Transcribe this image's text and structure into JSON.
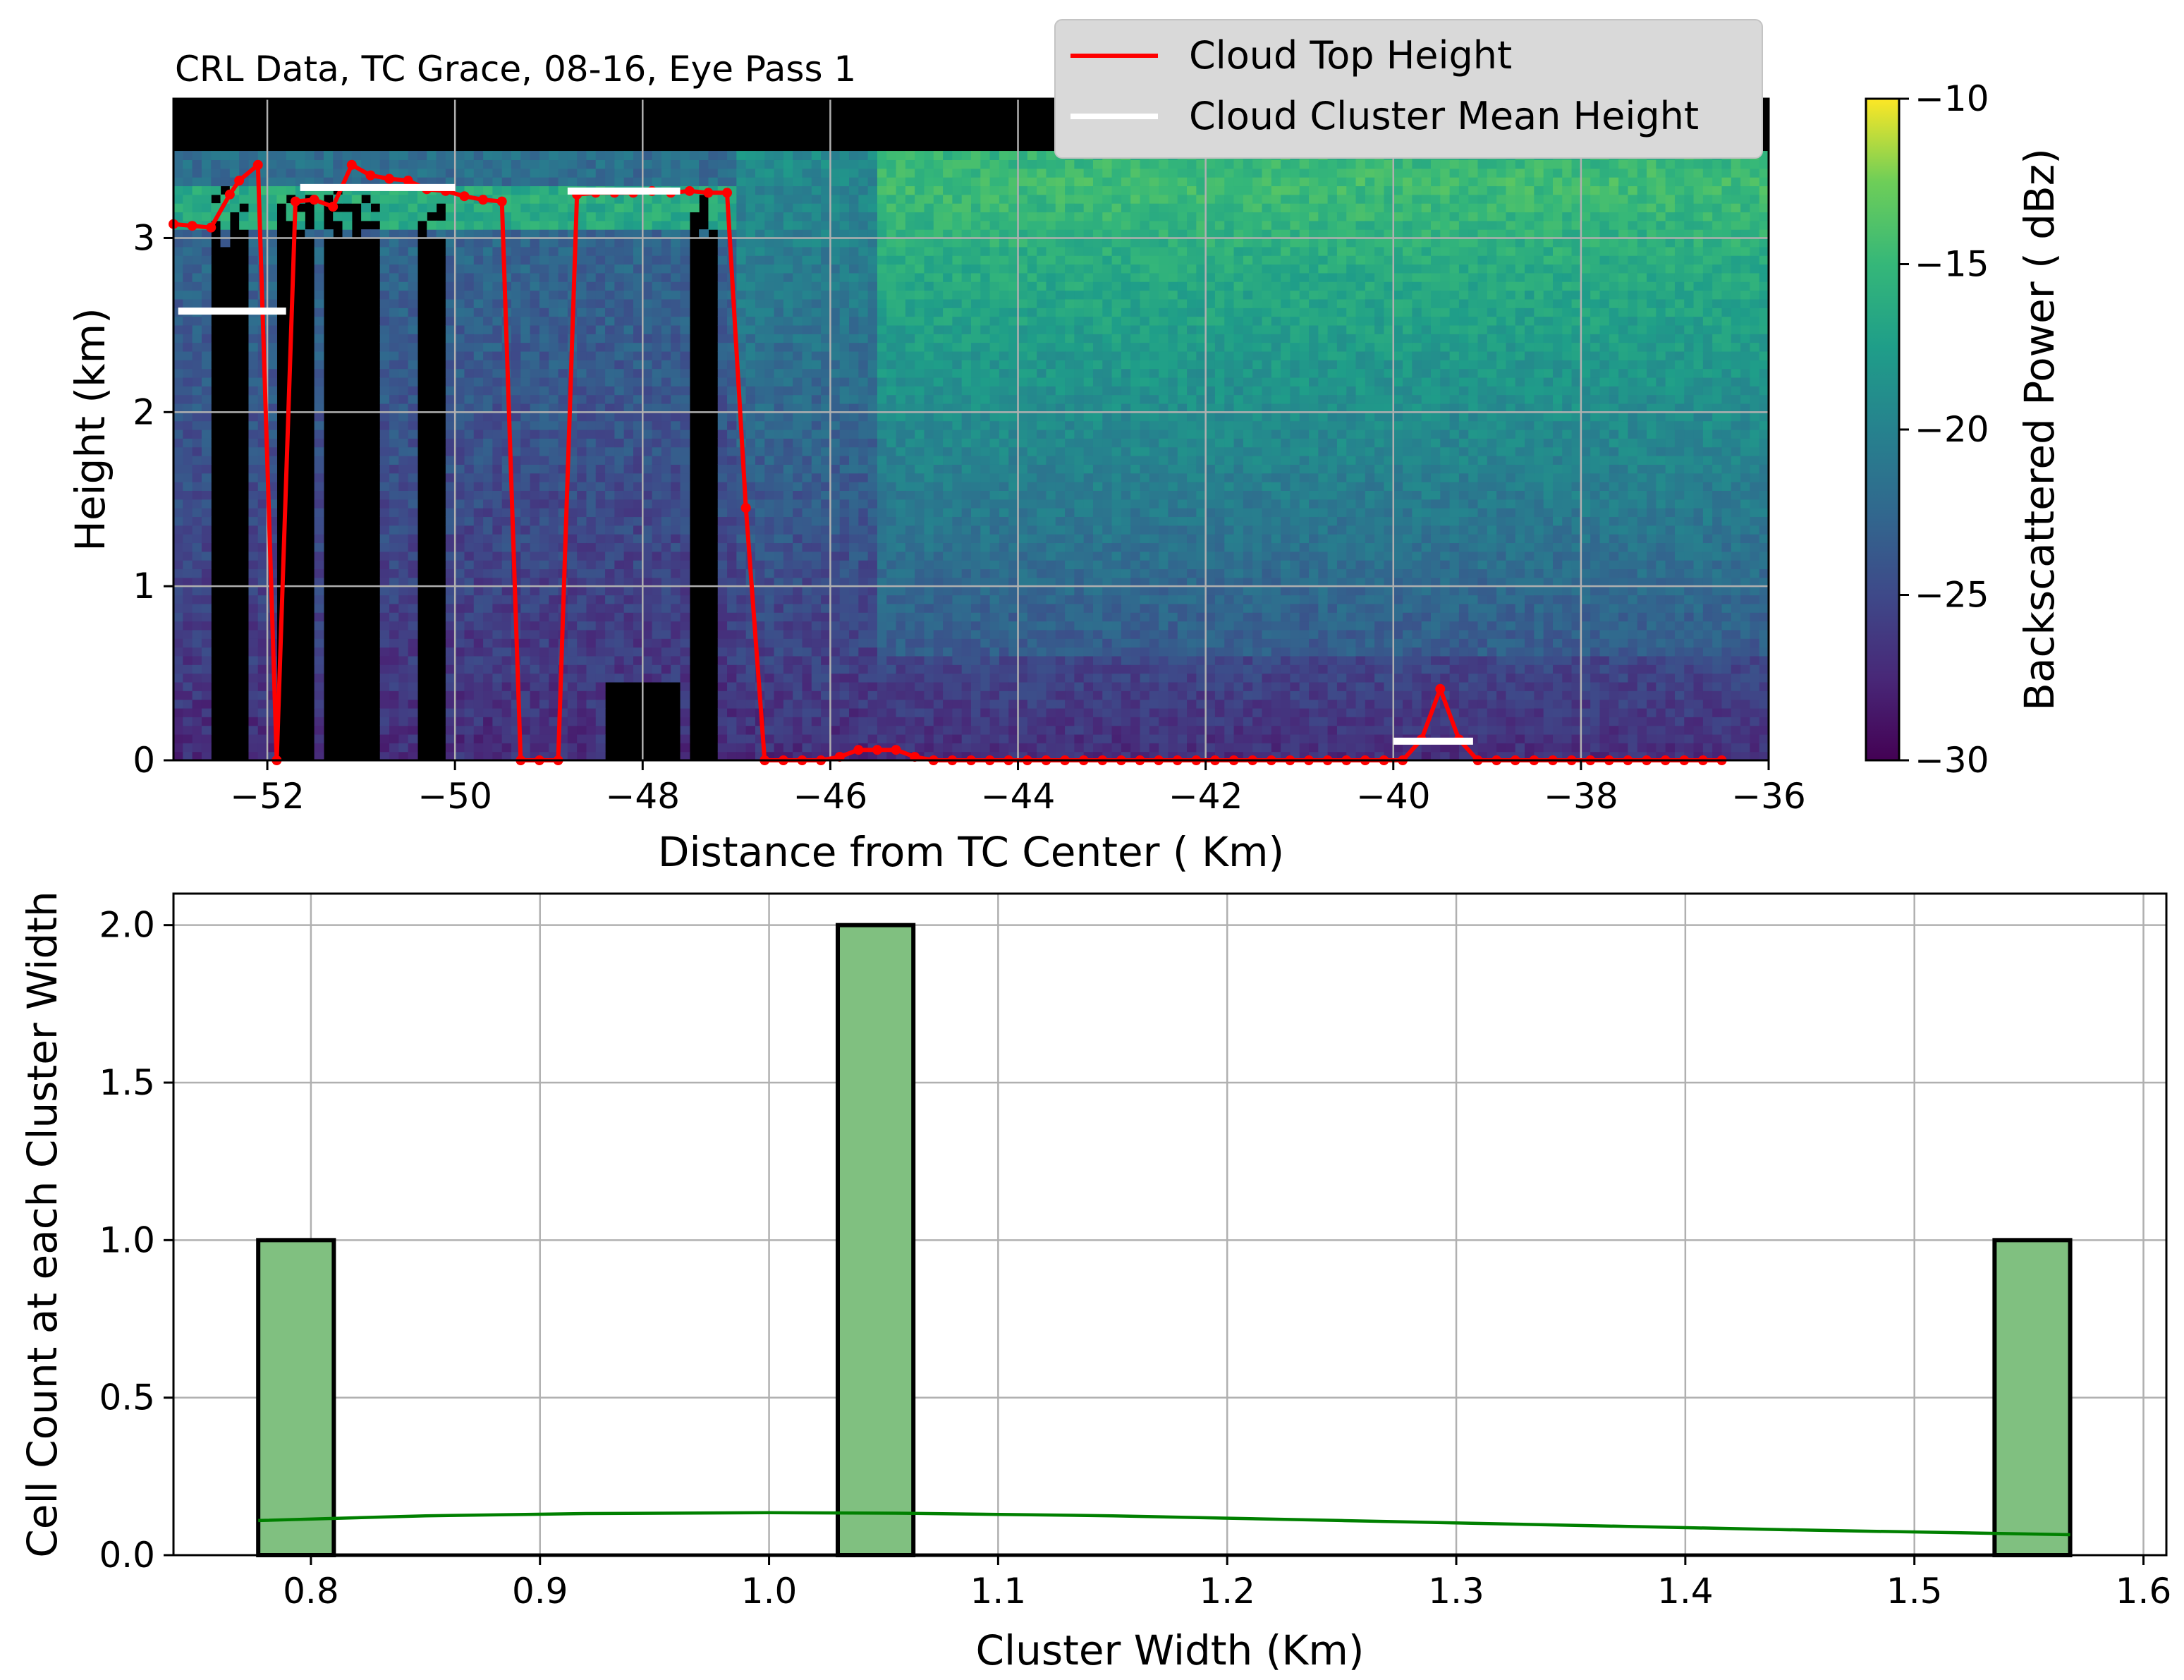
{
  "chart_data": [
    {
      "type": "heatmap",
      "title": "CRL Data, TC Grace, 08-16, Eye Pass 1",
      "xlabel": "Distance from TC Center ( Km)",
      "ylabel": "Height (km)",
      "xlim": [
        -53,
        -36
      ],
      "ylim": [
        0,
        3.8
      ],
      "xticks": [
        -52,
        -50,
        -48,
        -46,
        -44,
        -42,
        -40,
        -38,
        -36
      ],
      "yticks": [
        0,
        1,
        2,
        3
      ],
      "grid": true,
      "colormap": "viridis",
      "colorbar": {
        "label": "Backscattered Power ( dBz)",
        "range": [
          -30,
          -10
        ],
        "ticks": [
          -30,
          -25,
          -20,
          -15,
          -10
        ]
      },
      "legend": {
        "placement": "top-center",
        "entries": [
          {
            "label": "Cloud Top Height",
            "color": "#ff0000"
          },
          {
            "label": "Cloud Cluster Mean Height",
            "color": "#ffffff"
          }
        ]
      },
      "series": [
        {
          "name": "Cloud Top Height",
          "color": "#ff0000",
          "x": [
            -53.0,
            -52.8,
            -52.6,
            -52.4,
            -52.3,
            -52.1,
            -51.9,
            -51.7,
            -51.5,
            -51.3,
            -51.1,
            -50.9,
            -50.7,
            -50.5,
            -50.3,
            -50.1,
            -49.9,
            -49.7,
            -49.5,
            -49.3,
            -49.1,
            -48.9,
            -48.7,
            -48.5,
            -48.3,
            -48.1,
            -47.9,
            -47.7,
            -47.5,
            -47.3,
            -47.1,
            -46.9,
            -46.7,
            -46.5,
            -46.3,
            -46.1,
            -45.9,
            -45.7,
            -45.5,
            -45.3,
            -45.1,
            -44.9,
            -44.7,
            -44.5,
            -44.3,
            -44.1,
            -43.9,
            -43.7,
            -43.5,
            -43.3,
            -43.1,
            -42.9,
            -42.7,
            -42.5,
            -42.3,
            -42.1,
            -41.9,
            -41.7,
            -41.5,
            -41.3,
            -41.1,
            -40.9,
            -40.7,
            -40.5,
            -40.3,
            -40.1,
            -39.9,
            -39.7,
            -39.5,
            -39.3,
            -39.1,
            -38.9,
            -38.7,
            -38.5,
            -38.3,
            -38.1,
            -37.9,
            -37.7,
            -37.5,
            -37.3,
            -37.1,
            -36.9,
            -36.7,
            -36.5
          ],
          "y": [
            3.08,
            3.07,
            3.06,
            3.25,
            3.33,
            3.42,
            0.0,
            3.21,
            3.22,
            3.18,
            3.42,
            3.36,
            3.34,
            3.33,
            3.28,
            3.27,
            3.24,
            3.22,
            3.21,
            0.0,
            0.0,
            0.0,
            3.25,
            3.26,
            3.26,
            3.26,
            3.27,
            3.26,
            3.27,
            3.26,
            3.26,
            1.45,
            0.0,
            0.0,
            0.0,
            0.0,
            0.02,
            0.06,
            0.06,
            0.06,
            0.02,
            0.0,
            0.0,
            0.0,
            0.0,
            0.0,
            0.0,
            0.0,
            0.0,
            0.0,
            0.0,
            0.0,
            0.0,
            0.0,
            0.0,
            0.0,
            0.0,
            0.0,
            0.0,
            0.0,
            0.0,
            0.0,
            0.0,
            0.0,
            0.0,
            0.0,
            0.0,
            0.12,
            0.41,
            0.12,
            0.0,
            0.0,
            0.0,
            0.0,
            0.0,
            0.0,
            0.0,
            0.0,
            0.0,
            0.0,
            0.0,
            0.0,
            0.0,
            0.0
          ]
        },
        {
          "name": "Cloud Cluster Mean Height",
          "color": "#ffffff",
          "segments": [
            {
              "x": [
                -52.95,
                -51.8
              ],
              "y": 2.58
            },
            {
              "x": [
                -51.65,
                -50.0
              ],
              "y": 3.29
            },
            {
              "x": [
                -48.8,
                -47.6
              ],
              "y": 3.27
            },
            {
              "x": [
                -40.0,
                -39.15
              ],
              "y": 0.11
            }
          ]
        }
      ]
    },
    {
      "type": "bar",
      "xlabel": "Cluster Width (Km)",
      "ylabel": "Cell Count at each Cluster Width",
      "xlim": [
        0.74,
        1.61
      ],
      "ylim": [
        0,
        2.1
      ],
      "xticks": [
        "0.8",
        "0.9",
        "1.0",
        "1.1",
        "1.2",
        "1.3",
        "1.4",
        "1.5",
        "1.6"
      ],
      "yticks": [
        "0.0",
        "0.5",
        "1.0",
        "1.5",
        "2.0"
      ],
      "grid": true,
      "bar_color": "#80c080",
      "bars": [
        {
          "x0": 0.777,
          "x1": 0.81,
          "value": 1
        },
        {
          "x0": 1.03,
          "x1": 1.063,
          "value": 2
        },
        {
          "x0": 1.535,
          "x1": 1.568,
          "value": 1
        }
      ],
      "kde": {
        "color": "#008000",
        "x": [
          0.777,
          0.85,
          0.92,
          1.0,
          1.06,
          1.15,
          1.25,
          1.35,
          1.45,
          1.568
        ],
        "y": [
          0.11,
          0.125,
          0.132,
          0.135,
          0.133,
          0.125,
          0.11,
          0.095,
          0.08,
          0.065
        ]
      }
    }
  ]
}
